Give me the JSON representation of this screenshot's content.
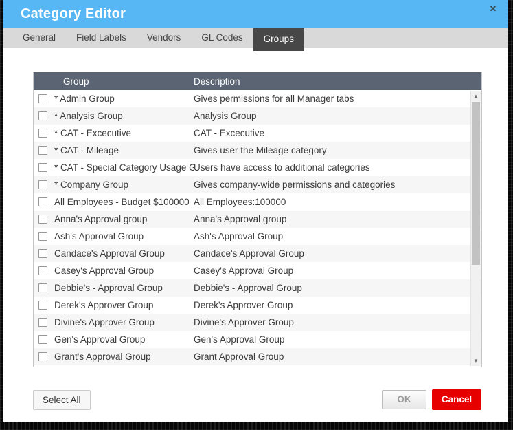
{
  "dialog": {
    "title": "Category Editor",
    "close_label": "✕"
  },
  "tabs": [
    {
      "label": "General",
      "active": false
    },
    {
      "label": "Field Labels",
      "active": false
    },
    {
      "label": "Vendors",
      "active": false
    },
    {
      "label": "GL Codes",
      "active": false
    },
    {
      "label": "Groups",
      "active": true
    }
  ],
  "table": {
    "columns": [
      "Group",
      "Description"
    ],
    "rows": [
      {
        "group": "* Admin Group",
        "description": "Gives permissions for all Manager tabs",
        "checked": false
      },
      {
        "group": "* Analysis Group",
        "description": "Analysis Group",
        "checked": false
      },
      {
        "group": "* CAT - Excecutive",
        "description": "CAT - Excecutive",
        "checked": false
      },
      {
        "group": "* CAT - Mileage",
        "description": "Gives user the Mileage category",
        "checked": false
      },
      {
        "group": "* CAT - Special Category Usage Gr",
        "description": "Users have access to additional categories",
        "checked": false
      },
      {
        "group": "* Company Group",
        "description": "Gives company-wide permissions and categories",
        "checked": false
      },
      {
        "group": "All Employees - Budget $100000",
        "description": "All Employees:100000",
        "checked": false
      },
      {
        "group": "Anna's Approval group",
        "description": "Anna's Approval group",
        "checked": false
      },
      {
        "group": "Ash's Approval Group",
        "description": "Ash's Approval Group",
        "checked": false
      },
      {
        "group": "Candace's Approval Group",
        "description": "Candace's Approval Group",
        "checked": false
      },
      {
        "group": "Casey's Approval Group",
        "description": "Casey's Approval Group",
        "checked": false
      },
      {
        "group": "Debbie's - Approval Group",
        "description": "Debbie's - Approval Group",
        "checked": false
      },
      {
        "group": "Derek's Approver Group",
        "description": "Derek's Approver Group",
        "checked": false
      },
      {
        "group": "Divine's Approver Group",
        "description": "Divine's Approver Group",
        "checked": false
      },
      {
        "group": "Gen's Approval Group",
        "description": "Gen's Approval Group",
        "checked": false
      },
      {
        "group": "Grant's Approval Group",
        "description": "Grant Approval Group",
        "checked": false
      }
    ]
  },
  "scrollbar": {
    "up_icon": "▲",
    "down_icon": "▼"
  },
  "footer": {
    "select_all_label": "Select All",
    "ok_label": "OK",
    "cancel_label": "Cancel"
  },
  "colors": {
    "titlebar": "#56b7f4",
    "active_tab": "#474747",
    "table_header": "#5a6473",
    "cancel_button": "#e60000"
  }
}
